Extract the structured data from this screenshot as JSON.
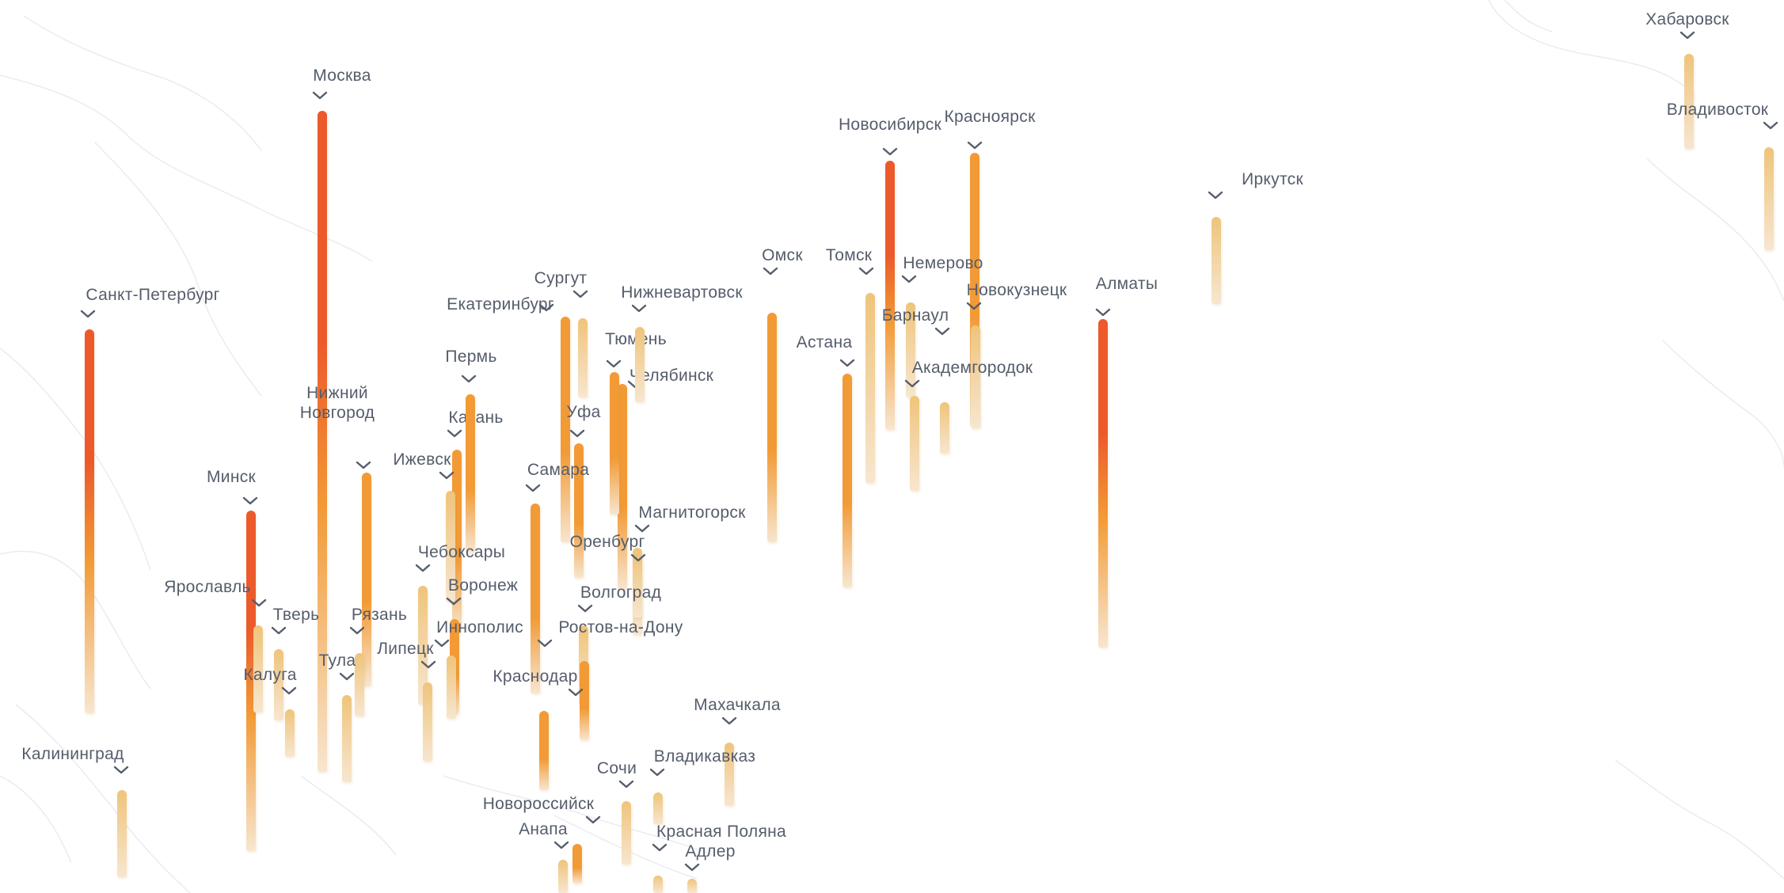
{
  "map": {
    "colors": {
      "high": "#ec5a2c",
      "mid": "#f29a35",
      "low": "#efc47a",
      "fade": "#f7e6d0",
      "label": "#555d6b",
      "coast": "#e9ecef"
    },
    "cities": [
      {
        "name": "Москва",
        "level": 1.0
      },
      {
        "name": "Санкт-Петербург",
        "level": 0.82
      },
      {
        "name": "Минск",
        "level": 0.78
      },
      {
        "name": "Алматы",
        "level": 0.8
      },
      {
        "name": "Новосибирск",
        "level": 0.75
      },
      {
        "name": "Красноярск",
        "level": 0.55
      },
      {
        "name": "Екатеринбург",
        "level": 0.55
      },
      {
        "name": "Казань",
        "level": 0.55
      },
      {
        "name": "Пермь",
        "level": 0.45
      },
      {
        "name": "Нижний\nНовгород",
        "level": 0.45
      },
      {
        "name": "Уфа",
        "level": 0.45
      },
      {
        "name": "Самара",
        "level": 0.4
      },
      {
        "name": "Челябинск",
        "level": 0.4
      },
      {
        "name": "Тюмень",
        "level": 0.4
      },
      {
        "name": "Омск",
        "level": 0.4
      },
      {
        "name": "Астана",
        "level": 0.4
      },
      {
        "name": "Томск",
        "level": 0.3
      },
      {
        "name": "Барнаул",
        "level": 0.3
      },
      {
        "name": "Новокузнецк",
        "level": 0.3
      },
      {
        "name": "Академгородок",
        "level": 0.3
      },
      {
        "name": "Немерово",
        "level": 0.15
      },
      {
        "name": "Иркутск",
        "level": 0.2
      },
      {
        "name": "Хабаровск",
        "level": 0.2
      },
      {
        "name": "Владивосток",
        "level": 0.2
      },
      {
        "name": "Сургут",
        "level": 0.15
      },
      {
        "name": "Нижневартовск",
        "level": 0.15
      },
      {
        "name": "Магнитогорск",
        "level": 0.15
      },
      {
        "name": "Оренбург",
        "level": 0.2
      },
      {
        "name": "Волгоград",
        "level": 0.2
      },
      {
        "name": "Ижевск",
        "level": 0.3
      },
      {
        "name": "Чебоксары",
        "level": 0.2
      },
      {
        "name": "Воронеж",
        "level": 0.4
      },
      {
        "name": "Иннополис",
        "level": 0.15
      },
      {
        "name": "Ростов-на-Дону",
        "level": 0.4
      },
      {
        "name": "Краснодар",
        "level": 0.4
      },
      {
        "name": "Липецк",
        "level": 0.15
      },
      {
        "name": "Ярославль",
        "level": 0.2
      },
      {
        "name": "Тверь",
        "level": 0.15
      },
      {
        "name": "Рязань",
        "level": 0.15
      },
      {
        "name": "Тула",
        "level": 0.15
      },
      {
        "name": "Калуга",
        "level": 0.15
      },
      {
        "name": "Махачкала",
        "level": 0.3
      },
      {
        "name": "Владикавказ",
        "level": 0.15
      },
      {
        "name": "Сочи",
        "level": 0.2
      },
      {
        "name": "Новороссийск",
        "level": 0.4
      },
      {
        "name": "Анапа",
        "level": 0.15
      },
      {
        "name": "Красная Поляна",
        "level": 0.15
      },
      {
        "name": "Адлер",
        "level": 0.15
      },
      {
        "name": "Калининград",
        "level": 0.15
      }
    ]
  }
}
